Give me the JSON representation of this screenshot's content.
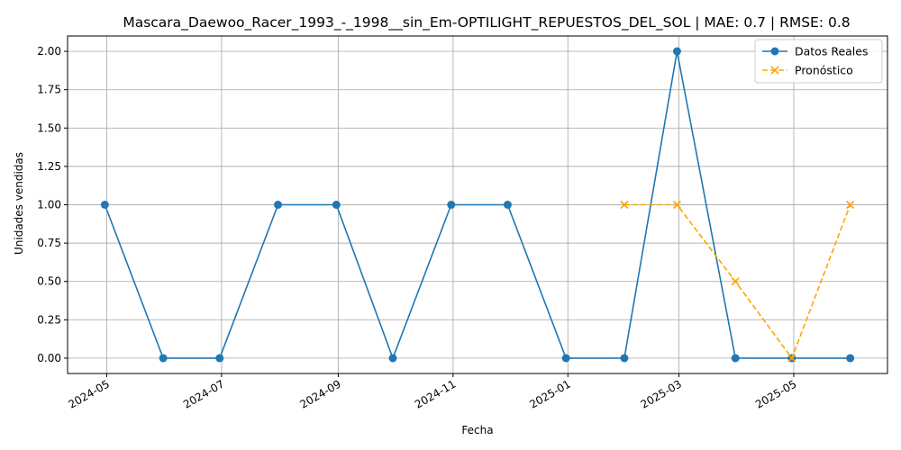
{
  "chart_data": {
    "type": "line",
    "title": "Mascara_Daewoo_Racer_1993_-_1998__sin_Em-OPTILIGHT_REPUESTOS_DEL_SOL | MAE: 0.7 | RMSE: 0.8",
    "xlabel": "Fecha",
    "ylabel": "Unidades vendidas",
    "ylim": [
      -0.1,
      2.1
    ],
    "grid": true,
    "legend_position": "top-right",
    "x_ticks": [
      "2024-05",
      "2024-07",
      "2024-09",
      "2024-11",
      "2025-01",
      "2025-03",
      "2025-05"
    ],
    "y_ticks": [
      "0.00",
      "0.25",
      "0.50",
      "0.75",
      "1.00",
      "1.25",
      "1.50",
      "1.75",
      "2.00"
    ],
    "series": [
      {
        "name": "Datos Reales",
        "color": "#1f77b4",
        "style": "solid",
        "marker": "circle",
        "x": [
          "2024-04-30",
          "2024-05-31",
          "2024-06-30",
          "2024-07-31",
          "2024-08-31",
          "2024-09-30",
          "2024-10-31",
          "2024-11-30",
          "2024-12-31",
          "2025-01-31",
          "2025-02-28",
          "2025-03-31",
          "2025-04-30",
          "2025-05-31"
        ],
        "values": [
          1,
          0,
          0,
          1,
          1,
          0,
          1,
          1,
          0,
          0,
          2,
          0,
          0,
          0
        ]
      },
      {
        "name": "Pronóstico",
        "color": "#ffa500",
        "style": "dashed",
        "marker": "x",
        "x": [
          "2025-01-31",
          "2025-02-28",
          "2025-03-31",
          "2025-04-30",
          "2025-05-31"
        ],
        "values": [
          1,
          1,
          0.5,
          0,
          1
        ]
      }
    ]
  }
}
